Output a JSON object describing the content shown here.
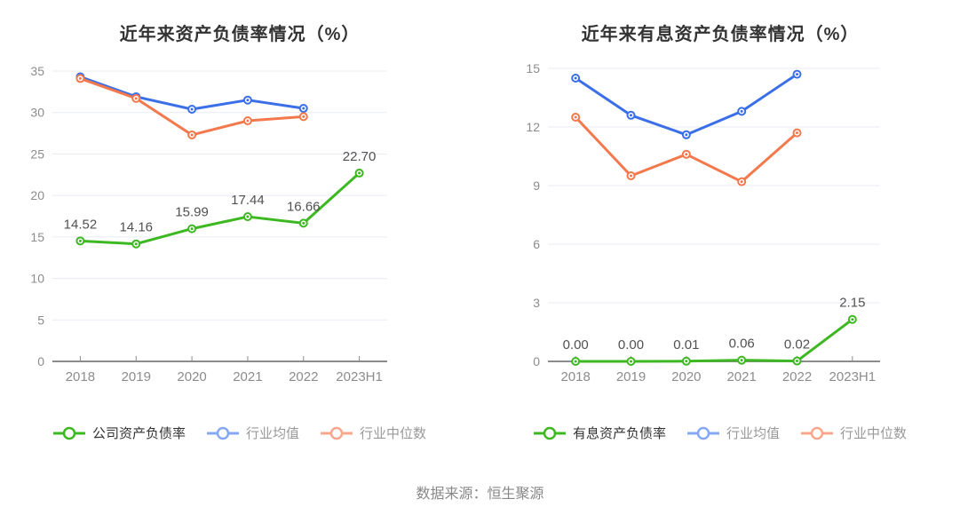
{
  "source_note": "数据来源：恒生聚源",
  "chart_data": [
    {
      "type": "line",
      "title": "近年来资产负债率情况（%）",
      "categories": [
        "2018",
        "2019",
        "2020",
        "2021",
        "2022",
        "2023H1"
      ],
      "ylim": [
        0,
        35
      ],
      "ytick_step": 5,
      "grid": true,
      "legend_position": "bottom",
      "series": [
        {
          "name": "公司资产负债率",
          "color": "#3eb822",
          "legend_color": "#3eb822",
          "values": [
            14.52,
            14.16,
            15.99,
            17.44,
            16.66,
            22.7
          ],
          "point_labels": [
            "14.52",
            "14.16",
            "15.99",
            "17.44",
            "16.66",
            "22.70"
          ]
        },
        {
          "name": "行业均值",
          "color": "#3b6fe8",
          "legend_color": "#86a8f3",
          "values": [
            34.3,
            31.9,
            30.4,
            31.5,
            30.5
          ]
        },
        {
          "name": "行业中位数",
          "color": "#f3794d",
          "legend_color": "#f8a78c",
          "values": [
            34.1,
            31.7,
            27.3,
            29.0,
            29.5
          ]
        }
      ]
    },
    {
      "type": "line",
      "title": "近年来有息资产负债率情况（%）",
      "categories": [
        "2018",
        "2019",
        "2020",
        "2021",
        "2022",
        "2023H1"
      ],
      "ylim": [
        0,
        15
      ],
      "ytick_step": 3,
      "grid": true,
      "legend_position": "bottom",
      "series": [
        {
          "name": "有息资产负债率",
          "color": "#3eb822",
          "legend_color": "#3eb822",
          "values": [
            0.0,
            0.0,
            0.01,
            0.06,
            0.02,
            2.15
          ],
          "point_labels": [
            "0.00",
            "0.00",
            "0.01",
            "0.06",
            "0.02",
            "2.15"
          ]
        },
        {
          "name": "行业均值",
          "color": "#3b6fe8",
          "legend_color": "#86a8f3",
          "values": [
            14.5,
            12.6,
            11.6,
            12.8,
            14.7
          ]
        },
        {
          "name": "行业中位数",
          "color": "#f3794d",
          "legend_color": "#f8a78c",
          "values": [
            12.5,
            9.5,
            10.6,
            9.2,
            11.7
          ]
        }
      ]
    }
  ],
  "style": {
    "background": "#ffffff",
    "title_color": "#333333",
    "axis_label_color": "#8c8c8c",
    "axis_line_color": "#8c8c8c",
    "grid_color": "#e7ebf3",
    "value_label_color": "#515151",
    "legend_active_text": "#333333",
    "legend_muted_text": "#999999"
  }
}
